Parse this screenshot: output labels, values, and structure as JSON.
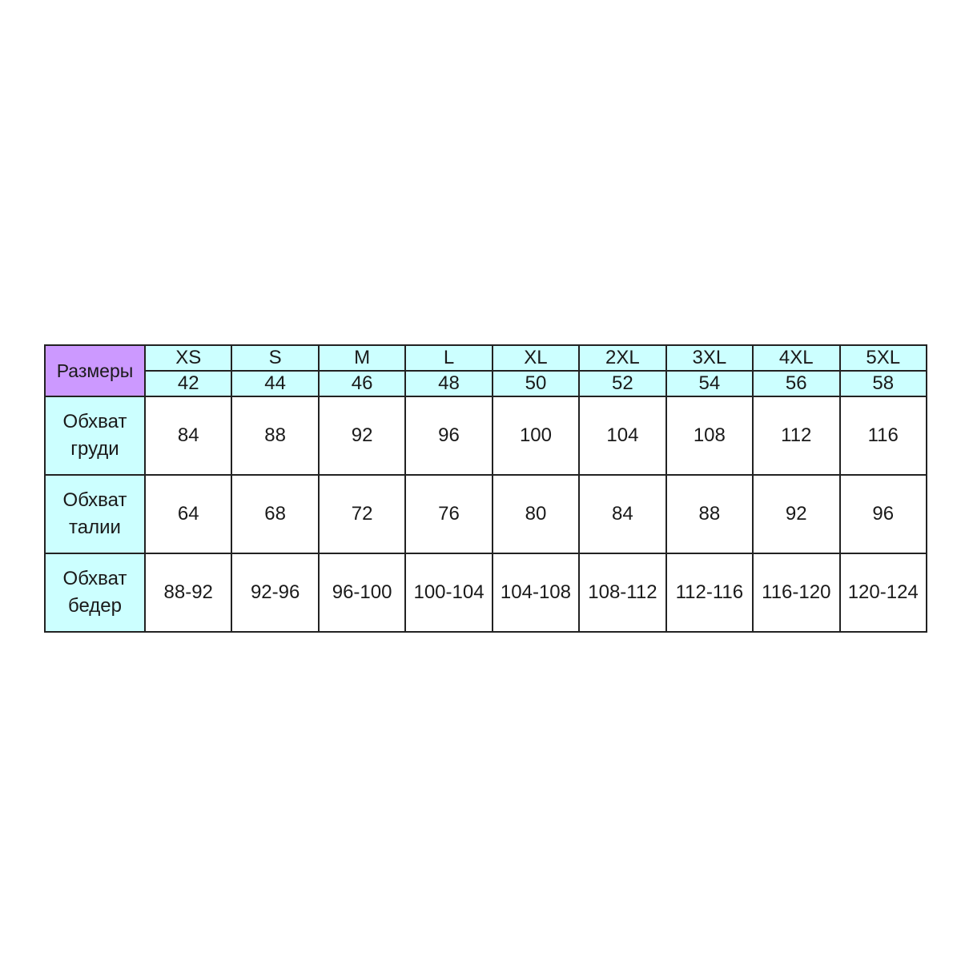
{
  "table": {
    "corner_label": "Размеры",
    "sizes": [
      "XS",
      "S",
      "M",
      "L",
      "XL",
      "2XL",
      "3XL",
      "4XL",
      "5XL"
    ],
    "ru_sizes": [
      "42",
      "44",
      "46",
      "48",
      "50",
      "52",
      "54",
      "56",
      "58"
    ],
    "rows": [
      {
        "label_line1": "Обхват",
        "label_line2": "груди",
        "values": [
          "84",
          "88",
          "92",
          "96",
          "100",
          "104",
          "108",
          "112",
          "116"
        ]
      },
      {
        "label_line1": "Обхват",
        "label_line2": "талии",
        "values": [
          "64",
          "68",
          "72",
          "76",
          "80",
          "84",
          "88",
          "92",
          "96"
        ]
      },
      {
        "label_line1": "Обхват",
        "label_line2": "бедер",
        "values": [
          "88-92",
          "92-96",
          "96-100",
          "100-104",
          "104-108",
          "108-112",
          "112-116",
          "116-120",
          "120-124"
        ]
      }
    ]
  },
  "colors": {
    "header_bg": "#ccffff",
    "corner_bg": "#cc99ff",
    "border": "#222222"
  }
}
